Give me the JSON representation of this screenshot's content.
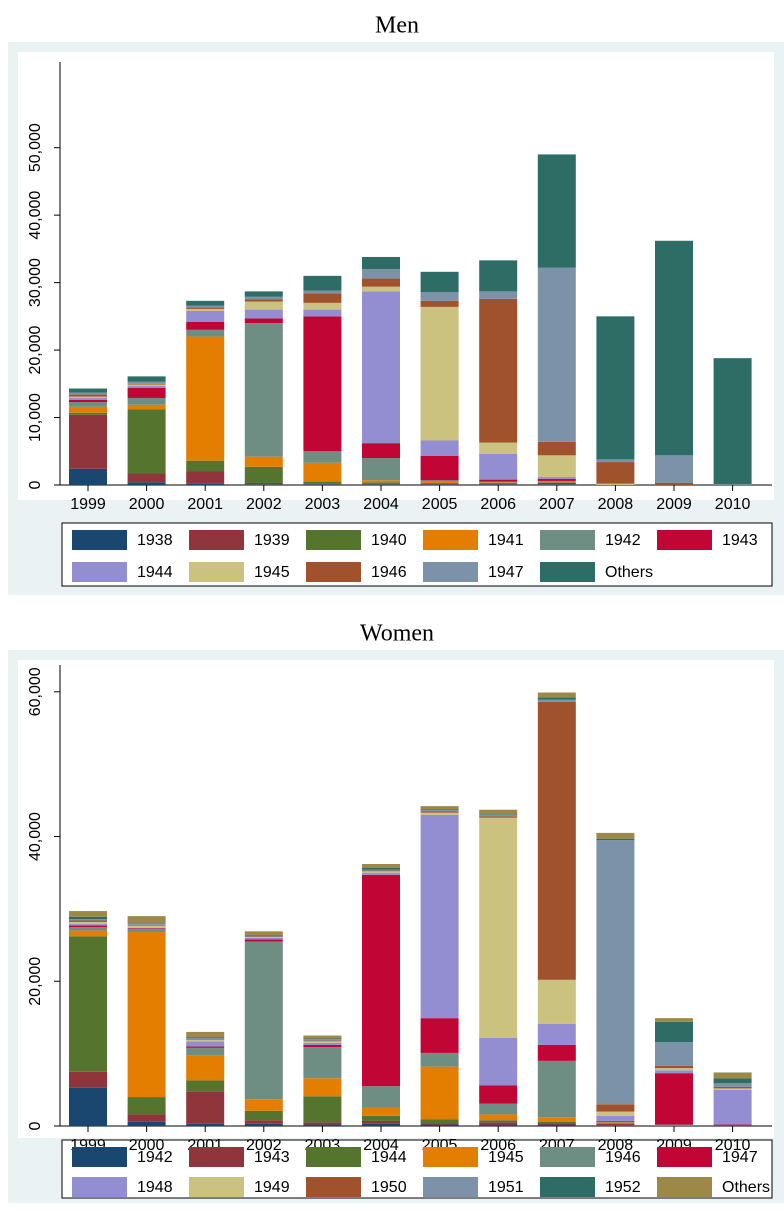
{
  "chart_data": [
    {
      "type": "bar",
      "stacked": true,
      "title": "Men",
      "categories": [
        "1999",
        "2000",
        "2001",
        "2002",
        "2003",
        "2004",
        "2005",
        "2006",
        "2007",
        "2008",
        "2009",
        "2010"
      ],
      "ylim": [
        0,
        62700
      ],
      "yticks": [
        0,
        {
          "value": 10000,
          "label": "10,000"
        },
        {
          "value": 20000,
          "label": "20,000"
        },
        {
          "value": 30000,
          "label": "30,000"
        },
        {
          "value": 40000,
          "label": "40,000"
        },
        {
          "value": 50000,
          "label": "50,000"
        }
      ],
      "series": [
        {
          "name": "1938",
          "color": "#1a476f",
          "values": [
            2400,
            400,
            200,
            100,
            100,
            100,
            100,
            100,
            100,
            0,
            0,
            0
          ]
        },
        {
          "name": "1939",
          "color": "#90353b",
          "values": [
            8000,
            1300,
            1800,
            200,
            100,
            100,
            100,
            100,
            200,
            0,
            0,
            0
          ]
        },
        {
          "name": "1940",
          "color": "#55752f",
          "values": [
            300,
            9500,
            1600,
            2400,
            300,
            200,
            100,
            100,
            100,
            0,
            0,
            0
          ]
        },
        {
          "name": "1941",
          "color": "#e37e00",
          "values": [
            900,
            700,
            18400,
            1500,
            2800,
            300,
            200,
            100,
            100,
            0,
            0,
            0
          ]
        },
        {
          "name": "1942",
          "color": "#6e8e84",
          "values": [
            700,
            1000,
            1000,
            19800,
            1700,
            3300,
            200,
            100,
            100,
            0,
            0,
            0
          ]
        },
        {
          "name": "1943",
          "color": "#c10534",
          "values": [
            300,
            1500,
            1200,
            700,
            20000,
            2200,
            3600,
            300,
            300,
            0,
            0,
            0
          ]
        },
        {
          "name": "1944",
          "color": "#938dd2",
          "values": [
            300,
            300,
            1600,
            1300,
            1000,
            22500,
            2300,
            3800,
            300,
            0,
            0,
            0
          ]
        },
        {
          "name": "1945",
          "color": "#cac27e",
          "values": [
            200,
            200,
            300,
            1200,
            1000,
            700,
            19800,
            1700,
            3200,
            200,
            0,
            0
          ]
        },
        {
          "name": "1946",
          "color": "#a0522d",
          "values": [
            300,
            100,
            200,
            300,
            1400,
            1200,
            900,
            21300,
            2000,
            3200,
            300,
            0
          ]
        },
        {
          "name": "1947",
          "color": "#7b92a8",
          "values": [
            300,
            300,
            300,
            400,
            400,
            1400,
            1300,
            1100,
            25800,
            400,
            4100,
            100
          ]
        },
        {
          "name": "Others",
          "color": "#2d6d66",
          "values": [
            600,
            800,
            700,
            800,
            2200,
            1800,
            3000,
            4600,
            16800,
            21200,
            31800,
            18700
          ]
        }
      ]
    },
    {
      "type": "bar",
      "stacked": true,
      "title": "Women",
      "categories": [
        "1999",
        "2000",
        "2001",
        "2002",
        "2003",
        "2004",
        "2005",
        "2006",
        "2007",
        "2008",
        "2009",
        "2010"
      ],
      "ylim": [
        0,
        63700
      ],
      "yticks": [
        0,
        {
          "value": 20000,
          "label": "20,000"
        },
        {
          "value": 40000,
          "label": "40,000"
        },
        {
          "value": 60000,
          "label": "60,000"
        }
      ],
      "series": [
        {
          "name": "1942",
          "color": "#1a476f",
          "values": [
            5300,
            600,
            300,
            300,
            200,
            300,
            200,
            200,
            200,
            100,
            0,
            100
          ]
        },
        {
          "name": "1943",
          "color": "#90353b",
          "values": [
            2200,
            1000,
            4500,
            500,
            300,
            400,
            200,
            300,
            200,
            200,
            0,
            0
          ]
        },
        {
          "name": "1944",
          "color": "#55752f",
          "values": [
            18700,
            2400,
            1500,
            1300,
            3600,
            700,
            500,
            300,
            200,
            100,
            0,
            0
          ]
        },
        {
          "name": "1945",
          "color": "#e37e00",
          "values": [
            800,
            22800,
            3500,
            1600,
            2500,
            1100,
            7300,
            800,
            600,
            100,
            0,
            0
          ]
        },
        {
          "name": "1946",
          "color": "#6e8e84",
          "values": [
            500,
            400,
            1000,
            21800,
            4300,
            3000,
            1900,
            1500,
            7800,
            100,
            200,
            0
          ]
        },
        {
          "name": "1947",
          "color": "#c10534",
          "values": [
            200,
            100,
            200,
            300,
            300,
            29200,
            4800,
            2500,
            2200,
            100,
            7100,
            100
          ]
        },
        {
          "name": "1948",
          "color": "#938dd2",
          "values": [
            200,
            100,
            700,
            200,
            300,
            300,
            28100,
            6600,
            2900,
            700,
            400,
            4800
          ]
        },
        {
          "name": "1949",
          "color": "#cac27e",
          "values": [
            300,
            300,
            200,
            100,
            200,
            200,
            300,
            30400,
            6100,
            600,
            300,
            200
          ]
        },
        {
          "name": "1950",
          "color": "#a0522d",
          "values": [
            200,
            100,
            100,
            100,
            100,
            100,
            200,
            200,
            38400,
            1000,
            300,
            200
          ]
        },
        {
          "name": "1951",
          "color": "#7b92a8",
          "values": [
            200,
            200,
            200,
            100,
            200,
            100,
            200,
            200,
            300,
            36500,
            3300,
            500
          ]
        },
        {
          "name": "1952",
          "color": "#2d6d66",
          "values": [
            300,
            100,
            100,
            100,
            100,
            300,
            100,
            100,
            300,
            200,
            2800,
            700
          ]
        },
        {
          "name": "Others",
          "color": "#9c8847",
          "values": [
            800,
            900,
            700,
            500,
            400,
            500,
            400,
            600,
            700,
            800,
            500,
            800
          ]
        }
      ]
    }
  ]
}
